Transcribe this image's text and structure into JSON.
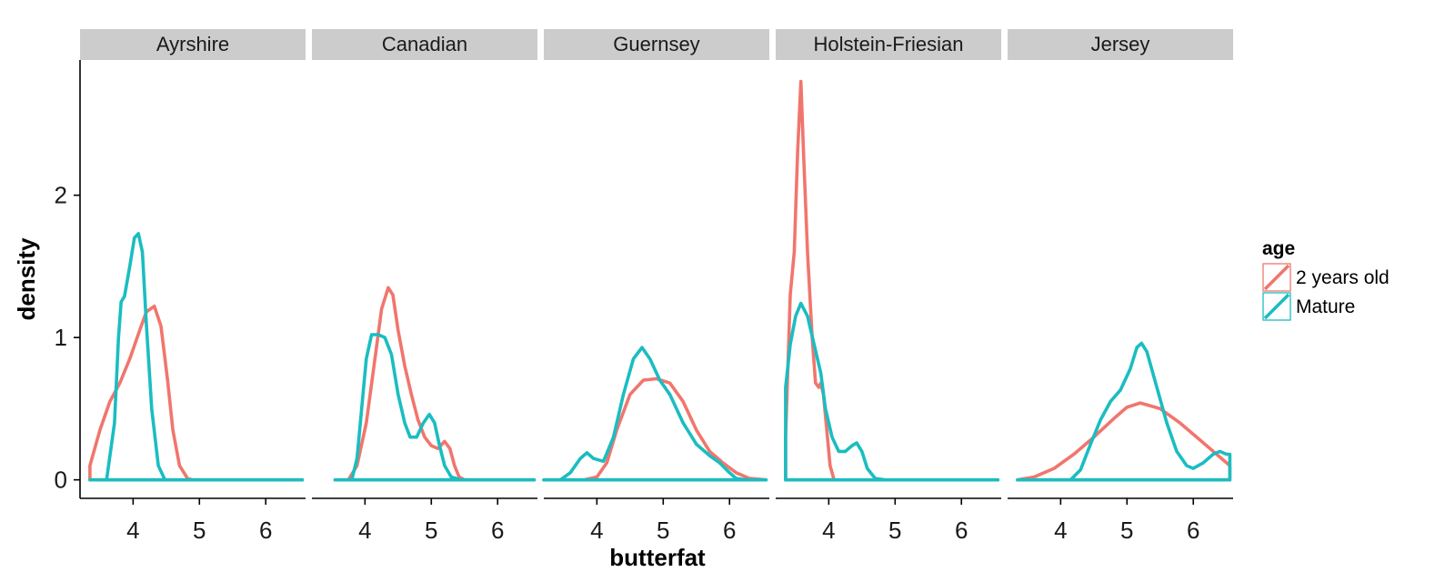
{
  "chart_data": {
    "type": "line",
    "subtype": "density, faceted",
    "xlabel": "butterfat",
    "ylabel": "density",
    "xlim": [
      3.2,
      6.6
    ],
    "ylim": [
      -0.13,
      2.95
    ],
    "x_ticks": [
      4,
      5,
      6
    ],
    "y_ticks": [
      0,
      1,
      2
    ],
    "grid": false,
    "legend": {
      "title": "age",
      "position": "right",
      "entries": [
        {
          "label": "2 years old",
          "color": "#F0766D"
        },
        {
          "label": "Mature",
          "color": "#1ABDC1"
        }
      ]
    },
    "facets": [
      {
        "name": "Ayrshire",
        "series": [
          {
            "name": "2 years old",
            "points": [
              [
                3.35,
                0
              ],
              [
                3.35,
                0.1
              ],
              [
                3.5,
                0.35
              ],
              [
                3.65,
                0.55
              ],
              [
                3.8,
                0.68
              ],
              [
                3.95,
                0.85
              ],
              [
                4.1,
                1.05
              ],
              [
                4.2,
                1.18
              ],
              [
                4.32,
                1.22
              ],
              [
                4.42,
                1.08
              ],
              [
                4.52,
                0.7
              ],
              [
                4.6,
                0.35
              ],
              [
                4.7,
                0.1
              ],
              [
                4.82,
                0.01
              ],
              [
                4.9,
                0
              ],
              [
                6.55,
                0
              ],
              [
                3.35,
                0
              ]
            ]
          },
          {
            "name": "Mature",
            "points": [
              [
                3.35,
                0
              ],
              [
                3.6,
                0
              ],
              [
                3.72,
                0.4
              ],
              [
                3.78,
                1.0
              ],
              [
                3.82,
                1.25
              ],
              [
                3.87,
                1.29
              ],
              [
                3.95,
                1.5
              ],
              [
                4.02,
                1.7
              ],
              [
                4.08,
                1.73
              ],
              [
                4.14,
                1.6
              ],
              [
                4.2,
                1.1
              ],
              [
                4.28,
                0.5
              ],
              [
                4.38,
                0.1
              ],
              [
                4.48,
                0
              ],
              [
                6.55,
                0
              ],
              [
                3.35,
                0
              ]
            ]
          }
        ]
      },
      {
        "name": "Canadian",
        "series": [
          {
            "name": "2 years old",
            "points": [
              [
                3.55,
                0
              ],
              [
                3.75,
                0
              ],
              [
                3.88,
                0.1
              ],
              [
                4.02,
                0.4
              ],
              [
                4.15,
                0.85
              ],
              [
                4.25,
                1.2
              ],
              [
                4.35,
                1.35
              ],
              [
                4.42,
                1.3
              ],
              [
                4.5,
                1.05
              ],
              [
                4.6,
                0.8
              ],
              [
                4.7,
                0.6
              ],
              [
                4.8,
                0.42
              ],
              [
                4.9,
                0.3
              ],
              [
                5.0,
                0.24
              ],
              [
                5.1,
                0.22
              ],
              [
                5.2,
                0.27
              ],
              [
                5.28,
                0.22
              ],
              [
                5.35,
                0.1
              ],
              [
                5.42,
                0.02
              ],
              [
                5.5,
                0
              ],
              [
                6.55,
                0
              ],
              [
                3.55,
                0
              ]
            ]
          },
          {
            "name": "Mature",
            "points": [
              [
                3.55,
                0
              ],
              [
                3.8,
                0
              ],
              [
                3.88,
                0.15
              ],
              [
                3.95,
                0.5
              ],
              [
                4.02,
                0.85
              ],
              [
                4.1,
                1.02
              ],
              [
                4.2,
                1.02
              ],
              [
                4.3,
                1.0
              ],
              [
                4.4,
                0.88
              ],
              [
                4.5,
                0.6
              ],
              [
                4.6,
                0.4
              ],
              [
                4.68,
                0.3
              ],
              [
                4.78,
                0.3
              ],
              [
                4.88,
                0.4
              ],
              [
                4.97,
                0.46
              ],
              [
                5.05,
                0.4
              ],
              [
                5.12,
                0.25
              ],
              [
                5.2,
                0.1
              ],
              [
                5.3,
                0.02
              ],
              [
                5.45,
                0
              ],
              [
                6.55,
                0
              ],
              [
                3.55,
                0
              ]
            ]
          }
        ]
      },
      {
        "name": "Guernsey",
        "series": [
          {
            "name": "2 years old",
            "points": [
              [
                3.2,
                0
              ],
              [
                3.8,
                0
              ],
              [
                4.0,
                0.02
              ],
              [
                4.15,
                0.12
              ],
              [
                4.3,
                0.35
              ],
              [
                4.5,
                0.6
              ],
              [
                4.7,
                0.7
              ],
              [
                4.9,
                0.71
              ],
              [
                5.1,
                0.68
              ],
              [
                5.3,
                0.55
              ],
              [
                5.5,
                0.35
              ],
              [
                5.7,
                0.2
              ],
              [
                5.9,
                0.12
              ],
              [
                6.1,
                0.05
              ],
              [
                6.3,
                0.01
              ],
              [
                6.55,
                0
              ],
              [
                3.2,
                0
              ]
            ]
          },
          {
            "name": "Mature",
            "points": [
              [
                3.2,
                0
              ],
              [
                3.45,
                0
              ],
              [
                3.6,
                0.05
              ],
              [
                3.75,
                0.15
              ],
              [
                3.85,
                0.19
              ],
              [
                3.95,
                0.15
              ],
              [
                4.1,
                0.13
              ],
              [
                4.25,
                0.3
              ],
              [
                4.4,
                0.6
              ],
              [
                4.55,
                0.85
              ],
              [
                4.68,
                0.93
              ],
              [
                4.8,
                0.85
              ],
              [
                4.95,
                0.7
              ],
              [
                5.1,
                0.6
              ],
              [
                5.3,
                0.4
              ],
              [
                5.5,
                0.25
              ],
              [
                5.7,
                0.17
              ],
              [
                5.85,
                0.12
              ],
              [
                6.0,
                0.05
              ],
              [
                6.1,
                0.01
              ],
              [
                6.25,
                0
              ],
              [
                6.55,
                0
              ],
              [
                3.2,
                0
              ]
            ]
          }
        ]
      },
      {
        "name": "Holstein-Friesian",
        "series": [
          {
            "name": "2 years old",
            "points": [
              [
                3.35,
                0
              ],
              [
                3.35,
                0.3
              ],
              [
                3.42,
                1.3
              ],
              [
                3.48,
                1.6
              ],
              [
                3.53,
                2.3
              ],
              [
                3.58,
                2.8
              ],
              [
                3.62,
                2.3
              ],
              [
                3.68,
                1.6
              ],
              [
                3.75,
                1.0
              ],
              [
                3.8,
                0.68
              ],
              [
                3.85,
                0.65
              ],
              [
                3.88,
                0.68
              ],
              [
                3.92,
                0.6
              ],
              [
                3.97,
                0.35
              ],
              [
                4.02,
                0.1
              ],
              [
                4.08,
                0
              ],
              [
                3.35,
                0
              ]
            ]
          },
          {
            "name": "Mature",
            "points": [
              [
                3.35,
                0
              ],
              [
                3.35,
                0.65
              ],
              [
                3.42,
                0.95
              ],
              [
                3.5,
                1.15
              ],
              [
                3.58,
                1.24
              ],
              [
                3.68,
                1.15
              ],
              [
                3.78,
                0.95
              ],
              [
                3.88,
                0.75
              ],
              [
                3.95,
                0.5
              ],
              [
                4.05,
                0.3
              ],
              [
                4.15,
                0.2
              ],
              [
                4.25,
                0.2
              ],
              [
                4.35,
                0.24
              ],
              [
                4.42,
                0.26
              ],
              [
                4.5,
                0.2
              ],
              [
                4.58,
                0.08
              ],
              [
                4.7,
                0.01
              ],
              [
                4.85,
                0
              ],
              [
                6.55,
                0
              ],
              [
                3.35,
                0
              ]
            ]
          }
        ]
      },
      {
        "name": "Jersey",
        "series": [
          {
            "name": "2 years old",
            "points": [
              [
                3.35,
                0
              ],
              [
                3.6,
                0.02
              ],
              [
                3.9,
                0.08
              ],
              [
                4.2,
                0.18
              ],
              [
                4.5,
                0.3
              ],
              [
                4.8,
                0.43
              ],
              [
                5.0,
                0.51
              ],
              [
                5.2,
                0.54
              ],
              [
                5.5,
                0.5
              ],
              [
                5.8,
                0.4
              ],
              [
                6.1,
                0.28
              ],
              [
                6.35,
                0.18
              ],
              [
                6.55,
                0.1
              ],
              [
                6.55,
                0
              ],
              [
                3.35,
                0
              ]
            ]
          },
          {
            "name": "Mature",
            "points": [
              [
                3.35,
                0
              ],
              [
                4.15,
                0
              ],
              [
                4.3,
                0.07
              ],
              [
                4.45,
                0.25
              ],
              [
                4.6,
                0.42
              ],
              [
                4.75,
                0.55
              ],
              [
                4.9,
                0.63
              ],
              [
                5.05,
                0.78
              ],
              [
                5.15,
                0.93
              ],
              [
                5.22,
                0.96
              ],
              [
                5.3,
                0.9
              ],
              [
                5.45,
                0.65
              ],
              [
                5.6,
                0.4
              ],
              [
                5.75,
                0.2
              ],
              [
                5.9,
                0.1
              ],
              [
                6.0,
                0.08
              ],
              [
                6.15,
                0.12
              ],
              [
                6.3,
                0.18
              ],
              [
                6.4,
                0.2
              ],
              [
                6.5,
                0.18
              ],
              [
                6.55,
                0.18
              ],
              [
                6.55,
                0
              ],
              [
                3.35,
                0
              ]
            ]
          }
        ]
      }
    ]
  }
}
